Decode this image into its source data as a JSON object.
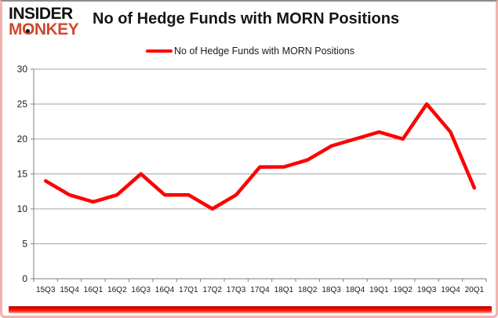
{
  "logo": {
    "line1": "INSIDER",
    "line2": "MONKEY"
  },
  "header": {
    "title": "No of Hedge Funds with MORN Positions"
  },
  "legend": {
    "label": "No of Hedge Funds with MORN Positions"
  },
  "colors": {
    "series_line": "#fe0000",
    "gridline": "#a6a6a6",
    "axis": "#7f7f7f",
    "tick_label": "#1a1a1a",
    "logo_accent": "#cf4a2e"
  },
  "chart_data": {
    "type": "line",
    "title": "No of Hedge Funds with MORN Positions",
    "categories": [
      "15Q3",
      "15Q4",
      "16Q1",
      "16Q2",
      "16Q3",
      "16Q4",
      "17Q1",
      "17Q2",
      "17Q3",
      "17Q4",
      "18Q1",
      "18Q2",
      "18Q3",
      "18Q4",
      "19Q1",
      "19Q2",
      "19Q3",
      "19Q4",
      "20Q1"
    ],
    "series": [
      {
        "name": "No of Hedge Funds with MORN Positions",
        "color": "#fe0000",
        "values": [
          14,
          12,
          11,
          12,
          15,
          12,
          12,
          10,
          12,
          16,
          16,
          17,
          19,
          20,
          21,
          20,
          25,
          21,
          13
        ]
      }
    ],
    "xlabel": "",
    "ylabel": "",
    "ylim": [
      0,
      30
    ],
    "yticks": [
      0,
      5,
      10,
      15,
      20,
      25,
      30
    ],
    "grid": true,
    "legend_position": "top-center"
  }
}
